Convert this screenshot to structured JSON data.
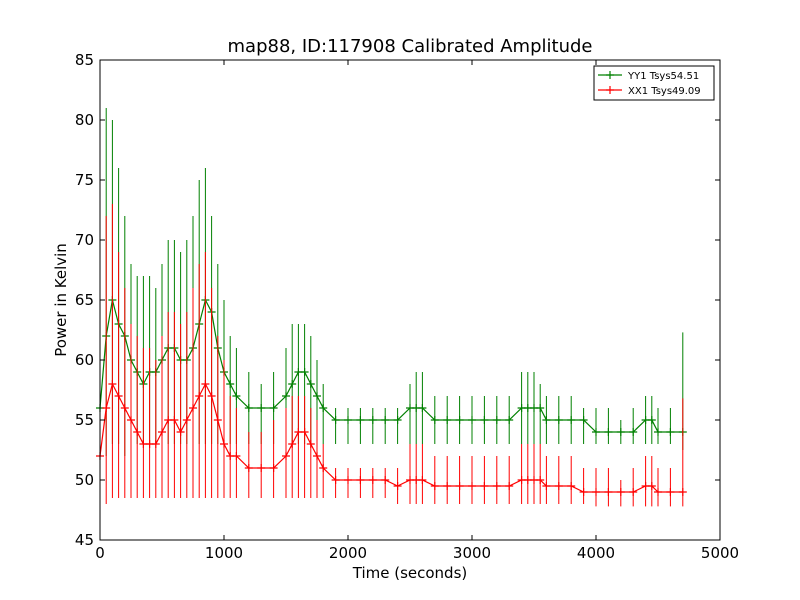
{
  "chart_data": {
    "type": "line",
    "title": "map88, ID:117908 Calibrated Amplitude",
    "xlabel": "Time (seconds)",
    "ylabel": "Power in Kelvin",
    "xlim": [
      0,
      5000
    ],
    "ylim": [
      45,
      85
    ],
    "xticks": [
      "0",
      "1000",
      "2000",
      "3000",
      "4000",
      "5000"
    ],
    "yticks": [
      "45",
      "50",
      "55",
      "60",
      "65",
      "70",
      "75",
      "80",
      "85"
    ],
    "grid": false,
    "legend_position": "top-right",
    "series": [
      {
        "name": "YY1 Tsys54.51",
        "color": "#008000",
        "marker": "+",
        "x": [
          0,
          50,
          100,
          150,
          200,
          250,
          300,
          350,
          400,
          450,
          500,
          550,
          600,
          650,
          700,
          750,
          800,
          850,
          900,
          950,
          1000,
          1050,
          1100,
          1200,
          1300,
          1400,
          1500,
          1550,
          1600,
          1650,
          1700,
          1750,
          1800,
          1900,
          2000,
          2100,
          2200,
          2300,
          2400,
          2500,
          2550,
          2600,
          2700,
          2800,
          2900,
          3000,
          3100,
          3200,
          3300,
          3400,
          3450,
          3500,
          3550,
          3600,
          3700,
          3800,
          3900,
          4000,
          4100,
          4200,
          4300,
          4400,
          4450,
          4500,
          4600,
          4700
        ],
        "y": [
          56,
          62,
          65,
          63,
          62,
          60,
          59,
          58,
          59,
          59,
          60,
          61,
          61,
          60,
          60,
          61,
          63,
          65,
          64,
          61,
          59,
          58,
          57,
          56,
          56,
          56,
          57,
          58,
          59,
          59,
          58,
          57,
          56,
          55,
          55,
          55,
          55,
          55,
          55,
          56,
          56,
          56,
          55,
          55,
          55,
          55,
          55,
          55,
          55,
          56,
          56,
          56,
          56,
          55,
          55,
          55,
          55,
          54,
          54,
          54,
          54,
          55,
          55,
          54,
          54,
          54
        ],
        "ymin": [
          52,
          52,
          53,
          53,
          52,
          53,
          53,
          53,
          53,
          53,
          53,
          53,
          53,
          53,
          53,
          53,
          53,
          53,
          53,
          53,
          53,
          53,
          53,
          53,
          53,
          53,
          53,
          53,
          53,
          53,
          53,
          53,
          53,
          53,
          53,
          53,
          53,
          53,
          53,
          53,
          53,
          53,
          53,
          53,
          53,
          53,
          53,
          53,
          53,
          53,
          53,
          53,
          53,
          53,
          53,
          53,
          53,
          53,
          53,
          53,
          53,
          53,
          53,
          53,
          53,
          52.5
        ],
        "ymax": [
          79,
          81,
          80,
          76,
          72,
          68,
          67,
          67,
          67,
          66,
          68,
          70,
          70,
          69,
          70,
          72,
          75,
          76,
          72,
          68,
          65,
          62,
          61,
          59,
          58,
          59,
          61,
          63,
          63,
          63,
          62,
          60,
          58,
          56,
          56,
          56,
          56,
          56,
          56,
          58,
          59,
          59,
          57,
          57,
          57,
          57,
          57,
          57,
          57,
          59,
          59,
          59,
          58,
          57,
          57,
          57,
          56,
          56,
          56,
          55,
          56,
          57,
          57,
          56,
          56,
          62.3
        ]
      },
      {
        "name": "XX1 Tsys49.09",
        "color": "#ff0000",
        "marker": "+",
        "x": [
          0,
          50,
          100,
          150,
          200,
          250,
          300,
          350,
          400,
          450,
          500,
          550,
          600,
          650,
          700,
          750,
          800,
          850,
          900,
          950,
          1000,
          1050,
          1100,
          1200,
          1300,
          1400,
          1500,
          1550,
          1600,
          1650,
          1700,
          1750,
          1800,
          1900,
          2000,
          2100,
          2200,
          2300,
          2400,
          2500,
          2550,
          2600,
          2700,
          2800,
          2900,
          3000,
          3100,
          3200,
          3300,
          3400,
          3450,
          3500,
          3550,
          3600,
          3700,
          3800,
          3900,
          4000,
          4100,
          4200,
          4300,
          4400,
          4450,
          4500,
          4600,
          4700
        ],
        "y": [
          52,
          56,
          58,
          57,
          56,
          55,
          54,
          53,
          53,
          53,
          54,
          55,
          55,
          54,
          55,
          56,
          57,
          58,
          57,
          55,
          53,
          52,
          52,
          51,
          51,
          51,
          52,
          53,
          54,
          54,
          53,
          52,
          51,
          50,
          50,
          50,
          50,
          50,
          49.5,
          50,
          50,
          50,
          49.5,
          49.5,
          49.5,
          49.5,
          49.5,
          49.5,
          49.5,
          50,
          50,
          50,
          50,
          49.5,
          49.5,
          49.5,
          49,
          49,
          49,
          49,
          49,
          49.5,
          49.5,
          49,
          49,
          49
        ],
        "ymin": [
          48,
          48,
          48.5,
          48.5,
          48.5,
          48.5,
          48.5,
          48.5,
          48.5,
          48.5,
          48.5,
          48.5,
          48.5,
          48.5,
          48.5,
          48.5,
          48.5,
          48.5,
          48.5,
          48.5,
          48.5,
          48.5,
          48.5,
          48.5,
          48.5,
          48.5,
          48.5,
          48.5,
          48.5,
          48.5,
          48.5,
          48.5,
          48.5,
          48.5,
          48.5,
          48.5,
          48.5,
          48.5,
          48,
          48,
          48,
          48,
          48,
          48,
          48,
          48,
          48,
          48,
          48,
          48,
          48,
          48,
          48,
          48,
          48,
          48,
          48,
          47.8,
          47.8,
          47.8,
          47.8,
          47.8,
          47.8,
          47.8,
          47.8,
          47.8
        ],
        "ymax": [
          68,
          72,
          73,
          69,
          66,
          63,
          62,
          61,
          61,
          60,
          62,
          64,
          64,
          63,
          64,
          66,
          68,
          69,
          66,
          62,
          60,
          57,
          56,
          54,
          54,
          55,
          56,
          57,
          57,
          57,
          56,
          55,
          53,
          51,
          51,
          51,
          51,
          51,
          51,
          53,
          53,
          53,
          52,
          52,
          52,
          52,
          52,
          52,
          52,
          53,
          53,
          53,
          53,
          52,
          52,
          52,
          51,
          51,
          51,
          50,
          51,
          52,
          52,
          51,
          51,
          56.8
        ]
      }
    ]
  }
}
